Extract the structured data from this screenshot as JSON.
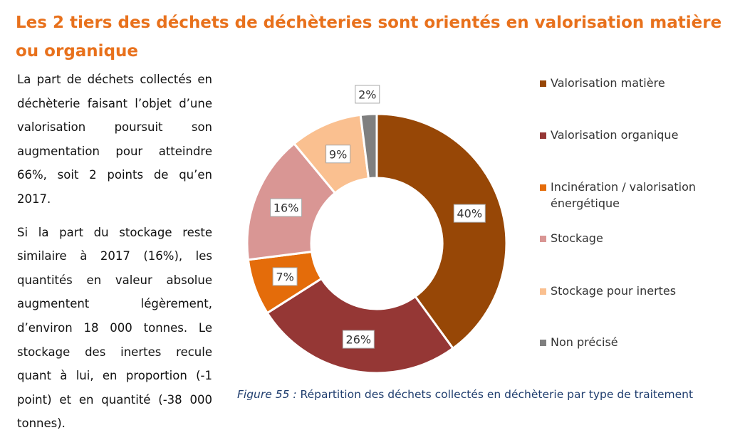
{
  "heading": "Les 2 tiers des déchets de déchèteries sont orientés en valorisation matière ou organique",
  "paragraphs": [
    "La part de déchets collectés en déchèterie faisant l’objet d’une valorisation poursuit son augmentation pour atteindre 66%, soit 2 points de qu’en 2017.",
    "Si la part du stockage reste similaire à 2017 (16%), les quantités en valeur absolue augmentent légèrement, d’environ 18 000 tonnes. Le stockage des inertes recule quant à lui, en proportion (-1 point) et en quantité (-38 000 tonnes)."
  ],
  "caption": {
    "figure_label": "Figure 55 :",
    "text": "Répartition des déchets collectés en déchèterie par type de traitement"
  },
  "chart_data": {
    "type": "pie",
    "variant": "donut",
    "legend_position": "right",
    "slices": [
      {
        "label": "Valorisation matière",
        "value": 40,
        "display": "40%",
        "color": "#974706"
      },
      {
        "label": "Valorisation organique",
        "value": 26,
        "display": "26%",
        "color": "#953735"
      },
      {
        "label": "Incinération / valorisation énergétique",
        "value": 7,
        "display": "7%",
        "color": "#e46c0a"
      },
      {
        "label": "Stockage",
        "value": 16,
        "display": "16%",
        "color": "#d99694"
      },
      {
        "label": "Stockage pour inertes",
        "value": 9,
        "display": "9%",
        "color": "#fac090"
      },
      {
        "label": "Non précisé",
        "value": 2,
        "display": "2%",
        "color": "#7f7f7f"
      }
    ]
  }
}
